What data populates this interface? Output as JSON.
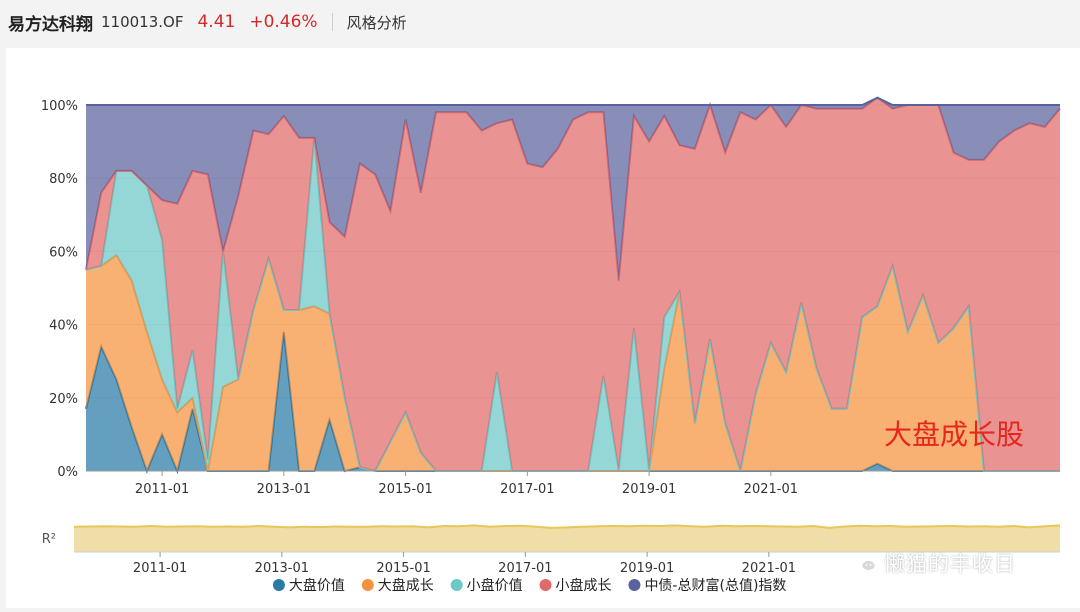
{
  "header": {
    "fund_name": "易方达科翔",
    "fund_code": "110013.OF",
    "price": "4.41",
    "change": "+0.46%",
    "tab_label": "风格分析"
  },
  "overlay_label": "大盘成长股",
  "watermark_text": "懒猫的丰收日",
  "r2_label": "R²",
  "colors": {
    "large_value": "#2a7aa6",
    "large_growth": "#f5923d",
    "small_value": "#6cc7c7",
    "small_growth": "#e06a6a",
    "bond_index": "#5a629d",
    "r2_fill": "#ead38a",
    "r2_line": "#e8c65a",
    "overlay": "#e8261c"
  },
  "chart_data": [
    {
      "type": "area",
      "stacked": true,
      "x": [
        "2009-10",
        "2010-01",
        "2010-04",
        "2010-07",
        "2010-10",
        "2011-01",
        "2011-04",
        "2011-07",
        "2011-10",
        "2012-01",
        "2012-04",
        "2012-07",
        "2012-10",
        "2013-01",
        "2013-04",
        "2013-07",
        "2013-10",
        "2014-01",
        "2014-04",
        "2014-07",
        "2014-10",
        "2015-01",
        "2015-04",
        "2015-07",
        "2015-10",
        "2016-01",
        "2016-04",
        "2016-07",
        "2016-10",
        "2017-01",
        "2017-04",
        "2017-07",
        "2017-10",
        "2018-01",
        "2018-04",
        "2018-07",
        "2018-10",
        "2019-01",
        "2019-04",
        "2019-07",
        "2019-10",
        "2020-01",
        "2020-04",
        "2020-07",
        "2020-10",
        "2021-01",
        "2021-04",
        "2021-07",
        "2021-10",
        "2022-01",
        "2022-04",
        "2022-07",
        "2022-10",
        "2023-01",
        "2023-04",
        "2023-07",
        "2023-10",
        "2024-01",
        "2024-04",
        "2024-07",
        "2024-10",
        "2025-01",
        "2025-04",
        "2025-07",
        "2025-10"
      ],
      "y_ticks": [
        "0%",
        "20%",
        "40%",
        "60%",
        "80%",
        "100%"
      ],
      "x_tick_labels": [
        "2011-01",
        "2013-01",
        "2015-01",
        "2017-01",
        "2019-01",
        "2021-01"
      ],
      "ylim": [
        0,
        100
      ],
      "legend_position": "bottom",
      "series": [
        {
          "name": "大盘价值",
          "color_key": "large_value",
          "values": [
            17,
            34,
            25,
            12,
            0,
            10,
            0,
            17,
            0,
            0,
            0,
            0,
            0,
            38,
            0,
            0,
            14,
            0,
            1,
            0,
            0,
            0,
            0,
            0,
            0,
            0,
            0,
            0,
            0,
            0,
            0,
            0,
            0,
            0,
            0,
            0,
            0,
            0,
            0,
            0,
            0,
            0,
            0,
            0,
            0,
            0,
            0,
            0,
            0,
            0,
            0,
            0,
            2,
            0,
            0,
            0,
            0,
            0,
            0,
            0,
            0,
            0,
            0,
            0,
            0
          ]
        },
        {
          "name": "大盘成长",
          "color_key": "large_growth",
          "values": [
            38,
            22,
            34,
            40,
            38,
            15,
            16,
            3,
            0,
            23,
            25,
            44,
            58,
            6,
            44,
            45,
            29,
            20,
            0,
            0,
            8,
            16,
            5,
            0,
            0,
            0,
            0,
            0,
            0,
            0,
            0,
            0,
            0,
            0,
            0,
            0,
            0,
            0,
            28,
            49,
            13,
            36,
            13,
            0,
            21,
            35,
            27,
            46,
            28,
            17,
            17,
            42,
            43,
            56,
            38,
            48,
            35,
            39,
            45,
            0,
            0,
            0,
            0,
            0,
            0
          ]
        },
        {
          "name": "小盘价值",
          "color_key": "small_value",
          "values": [
            0,
            0,
            23,
            30,
            40,
            38,
            1,
            13,
            3,
            37,
            0,
            0,
            0,
            0,
            0,
            46,
            0,
            0,
            0,
            0,
            0,
            0,
            0,
            0,
            0,
            0,
            0,
            27,
            0,
            0,
            0,
            0,
            0,
            0,
            26,
            0,
            39,
            0,
            14,
            0,
            0,
            0,
            0,
            0,
            0,
            0,
            0,
            0,
            0,
            0,
            0,
            0,
            0,
            0,
            0,
            0,
            0,
            0,
            0,
            0,
            0,
            0,
            0,
            0,
            0
          ]
        },
        {
          "name": "小盘成长",
          "color_key": "small_growth",
          "values": [
            0,
            20,
            0,
            0,
            0,
            11,
            56,
            49,
            78,
            0,
            50,
            49,
            34,
            53,
            47,
            0,
            25,
            44,
            83,
            81,
            63,
            80,
            71,
            98,
            98,
            98,
            93,
            68,
            96,
            84,
            83,
            88,
            96,
            98,
            72,
            52,
            58,
            90,
            55,
            40,
            75,
            64,
            74,
            98,
            75,
            65,
            67,
            54,
            71,
            82,
            82,
            57,
            57,
            43,
            62,
            52,
            65,
            48,
            40,
            85,
            90,
            93,
            95,
            94,
            99
          ]
        },
        {
          "name": "中债-总财富(总值)指数",
          "color_key": "bond_index",
          "values": [
            45,
            24,
            18,
            18,
            22,
            26,
            27,
            18,
            19,
            40,
            25,
            7,
            8,
            3,
            9,
            9,
            32,
            36,
            16,
            19,
            29,
            4,
            24,
            2,
            2,
            2,
            7,
            5,
            4,
            16,
            17,
            12,
            4,
            2,
            2,
            48,
            3,
            10,
            3,
            11,
            12,
            0,
            13,
            2,
            4,
            0,
            6,
            0,
            1,
            1,
            1,
            1,
            0,
            1,
            0,
            0,
            0,
            13,
            15,
            15,
            10,
            7,
            5,
            6,
            1
          ]
        }
      ]
    },
    {
      "type": "area",
      "name": "R²",
      "values": [
        0.9,
        0.91,
        0.92,
        0.91,
        0.9,
        0.93,
        0.9,
        0.91,
        0.92,
        0.9,
        0.91,
        0.9,
        0.93,
        0.9,
        0.88,
        0.9,
        0.89,
        0.91,
        0.9,
        0.9,
        0.92,
        0.91,
        0.92,
        0.88,
        0.93,
        0.92,
        0.95,
        0.9,
        0.93,
        0.94,
        0.9,
        0.86,
        0.88,
        0.9,
        0.92,
        0.93,
        0.92,
        0.94,
        0.93,
        0.95,
        0.92,
        0.9,
        0.94,
        0.92,
        0.93,
        0.92,
        0.91,
        0.9,
        0.93,
        0.86,
        0.91,
        0.94,
        0.92,
        0.93,
        0.9,
        0.91,
        0.92,
        0.93,
        0.91,
        0.92,
        0.9,
        0.93,
        0.88,
        0.92,
        0.95
      ],
      "x_tick_labels": [
        "2011-01",
        "2013-01",
        "2015-01",
        "2017-01",
        "2019-01",
        "2021-01"
      ]
    }
  ]
}
